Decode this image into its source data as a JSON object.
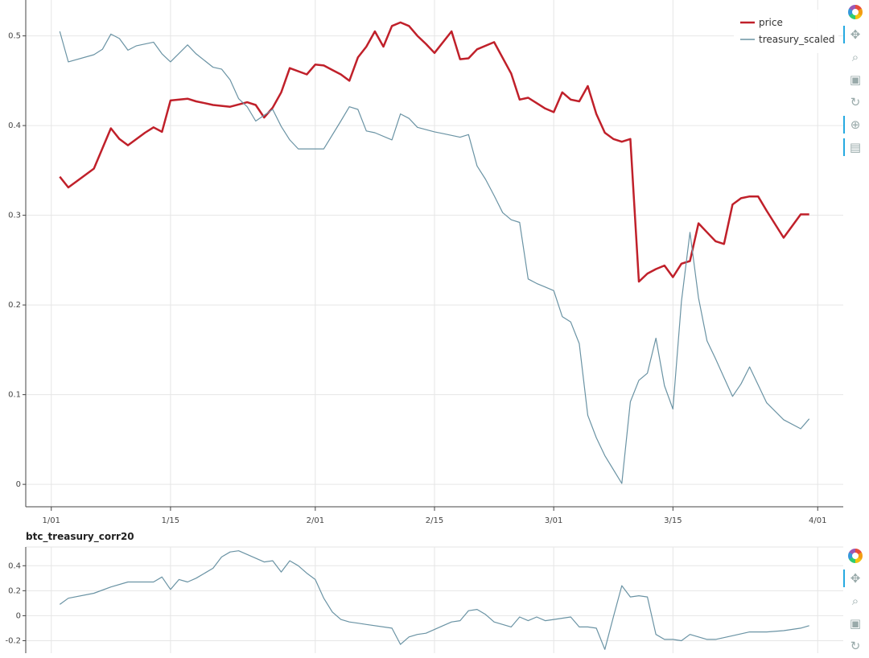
{
  "colors": {
    "price": "#c0202a",
    "treasury": "#6a93a4",
    "corr": "#6a93a4"
  },
  "toolbar_top": {
    "tools": [
      {
        "name": "bokeh-logo-icon",
        "glyph": ""
      },
      {
        "name": "pan-icon",
        "glyph": "✥"
      },
      {
        "name": "box-zoom-icon",
        "glyph": "⌕"
      },
      {
        "name": "save-icon",
        "glyph": "▣"
      },
      {
        "name": "reset-icon",
        "glyph": "↻"
      },
      {
        "name": "crosshair-icon",
        "glyph": "⊕"
      },
      {
        "name": "hover-icon",
        "glyph": "▤"
      }
    ]
  },
  "toolbar_bottom": {
    "tools": [
      {
        "name": "bokeh-logo-icon",
        "glyph": ""
      },
      {
        "name": "pan-icon",
        "glyph": "✥"
      },
      {
        "name": "box-zoom-icon",
        "glyph": "⌕"
      },
      {
        "name": "save-icon",
        "glyph": "▣"
      },
      {
        "name": "reset-icon",
        "glyph": "↻"
      }
    ]
  },
  "chart_data": [
    {
      "type": "line",
      "title": "",
      "xlabel": "",
      "ylabel": "",
      "x_tick_labels": [
        "1/01",
        "1/15",
        "2/01",
        "2/15",
        "3/01",
        "3/15",
        "4/01"
      ],
      "x_tick_days": [
        0,
        14,
        31,
        45,
        59,
        73,
        90
      ],
      "y_ticks": [
        0,
        0.1,
        0.2,
        0.3,
        0.4,
        0.5
      ],
      "y_tick_labels": [
        "0",
        "0.1",
        "0.2",
        "0.3",
        "0.4",
        "0.5"
      ],
      "xlim_days": [
        -3,
        93
      ],
      "ylim": [
        -0.025,
        0.54
      ],
      "grid": true,
      "legend_position": "top-right",
      "series": [
        {
          "name": "price",
          "color": "#c0202a",
          "x": [
            1,
            2,
            3,
            5,
            7,
            8,
            9,
            11,
            12,
            13,
            14,
            16,
            17,
            18,
            19,
            20,
            21,
            23,
            24,
            25,
            26,
            27,
            28,
            30,
            31,
            32,
            33,
            34,
            35,
            36,
            37,
            38,
            39,
            40,
            41,
            42,
            43,
            44,
            45,
            47,
            48,
            49,
            50,
            52,
            54,
            55,
            56,
            57,
            58,
            59,
            60,
            61,
            62,
            63,
            64,
            65,
            66,
            67,
            68,
            69,
            70,
            71,
            72,
            73,
            74,
            75,
            76,
            77,
            78,
            79,
            80,
            81,
            82,
            83,
            84,
            86,
            88,
            89
          ],
          "y": [
            0.343,
            0.331,
            0.338,
            0.352,
            0.397,
            0.385,
            0.378,
            0.392,
            0.398,
            0.393,
            0.428,
            0.43,
            0.427,
            0.425,
            0.423,
            0.422,
            0.421,
            0.426,
            0.423,
            0.409,
            0.42,
            0.437,
            0.464,
            0.457,
            0.468,
            0.467,
            0.462,
            0.457,
            0.45,
            0.476,
            0.488,
            0.505,
            0.488,
            0.511,
            0.515,
            0.511,
            0.5,
            0.491,
            0.481,
            0.505,
            0.474,
            0.475,
            0.485,
            0.493,
            0.458,
            0.429,
            0.431,
            0.425,
            0.419,
            0.415,
            0.437,
            0.429,
            0.427,
            0.444,
            0.413,
            0.392,
            0.385,
            0.382,
            0.385,
            0.226,
            0.235,
            0.24,
            0.244,
            0.231,
            0.246,
            0.249,
            0.291,
            0.281,
            0.271,
            0.268,
            0.312,
            0.319,
            0.321,
            0.321,
            0.305,
            0.275,
            0.301,
            0.301
          ]
        },
        {
          "name": "treasury_scaled",
          "color": "#6a93a4",
          "x": [
            1,
            2,
            5,
            6,
            7,
            8,
            9,
            10,
            12,
            13,
            14,
            16,
            17,
            19,
            20,
            21,
            22,
            23,
            24,
            26,
            27,
            28,
            29,
            30,
            31,
            32,
            34,
            35,
            36,
            37,
            38,
            40,
            41,
            42,
            43,
            45,
            46,
            48,
            49,
            50,
            51,
            52,
            53,
            54,
            55,
            56,
            57,
            58,
            59,
            60,
            61,
            62,
            63,
            64,
            65,
            67,
            68,
            69,
            70,
            71,
            72,
            73,
            74,
            75,
            76,
            77,
            78,
            79,
            80,
            81,
            82,
            84,
            86,
            88,
            89
          ],
          "y": [
            0.505,
            0.471,
            0.479,
            0.485,
            0.502,
            0.497,
            0.484,
            0.489,
            0.493,
            0.48,
            0.471,
            0.49,
            0.48,
            0.465,
            0.463,
            0.451,
            0.43,
            0.421,
            0.405,
            0.418,
            0.399,
            0.384,
            0.374,
            0.374,
            0.374,
            0.374,
            0.405,
            0.421,
            0.418,
            0.394,
            0.392,
            0.384,
            0.413,
            0.408,
            0.398,
            0.393,
            0.391,
            0.387,
            0.39,
            0.355,
            0.34,
            0.322,
            0.303,
            0.295,
            0.292,
            0.229,
            0.224,
            0.22,
            0.216,
            0.187,
            0.181,
            0.157,
            0.077,
            0.052,
            0.032,
            0.001,
            0.092,
            0.116,
            0.124,
            0.163,
            0.11,
            0.084,
            0.204,
            0.281,
            0.208,
            0.16,
            0.14,
            0.119,
            0.098,
            0.112,
            0.131,
            0.091,
            0.072,
            0.062,
            0.073
          ]
        }
      ]
    },
    {
      "type": "line",
      "title": "btc_treasury_corr20",
      "xlabel": "",
      "ylabel": "",
      "y_ticks": [
        -0.2,
        0,
        0.2,
        0.4
      ],
      "y_tick_labels": [
        "-0.2",
        "0",
        "0.2",
        "0.4"
      ],
      "xlim_days": [
        -3,
        93
      ],
      "ylim": [
        -0.3,
        0.55
      ],
      "grid": true,
      "series": [
        {
          "name": "btc_treasury_corr20",
          "color": "#6a93a4",
          "x": [
            1,
            2,
            5,
            7,
            9,
            12,
            13,
            14,
            15,
            16,
            17,
            19,
            20,
            21,
            22,
            23,
            25,
            26,
            27,
            28,
            29,
            30,
            31,
            32,
            33,
            34,
            35,
            36,
            37,
            40,
            41,
            42,
            43,
            44,
            46,
            47,
            48,
            49,
            50,
            51,
            52,
            54,
            55,
            56,
            57,
            58,
            59,
            61,
            62,
            63,
            64,
            65,
            66,
            67,
            68,
            69,
            70,
            71,
            72,
            73,
            74,
            75,
            76,
            77,
            78,
            80,
            82,
            84,
            86,
            88,
            89
          ],
          "y": [
            0.09,
            0.14,
            0.18,
            0.23,
            0.27,
            0.27,
            0.31,
            0.21,
            0.29,
            0.27,
            0.3,
            0.38,
            0.47,
            0.51,
            0.52,
            0.49,
            0.43,
            0.44,
            0.35,
            0.44,
            0.4,
            0.34,
            0.29,
            0.14,
            0.03,
            -0.03,
            -0.05,
            -0.06,
            -0.07,
            -0.1,
            -0.23,
            -0.17,
            -0.15,
            -0.14,
            -0.08,
            -0.05,
            -0.04,
            0.04,
            0.05,
            0.01,
            -0.05,
            -0.09,
            -0.01,
            -0.04,
            -0.01,
            -0.04,
            -0.03,
            -0.01,
            -0.09,
            -0.09,
            -0.1,
            -0.27,
            -0.01,
            0.24,
            0.15,
            0.16,
            0.15,
            -0.15,
            -0.19,
            -0.19,
            -0.2,
            -0.15,
            -0.17,
            -0.19,
            -0.19,
            -0.16,
            -0.13,
            -0.13,
            -0.12,
            -0.1,
            -0.08
          ]
        }
      ]
    }
  ]
}
